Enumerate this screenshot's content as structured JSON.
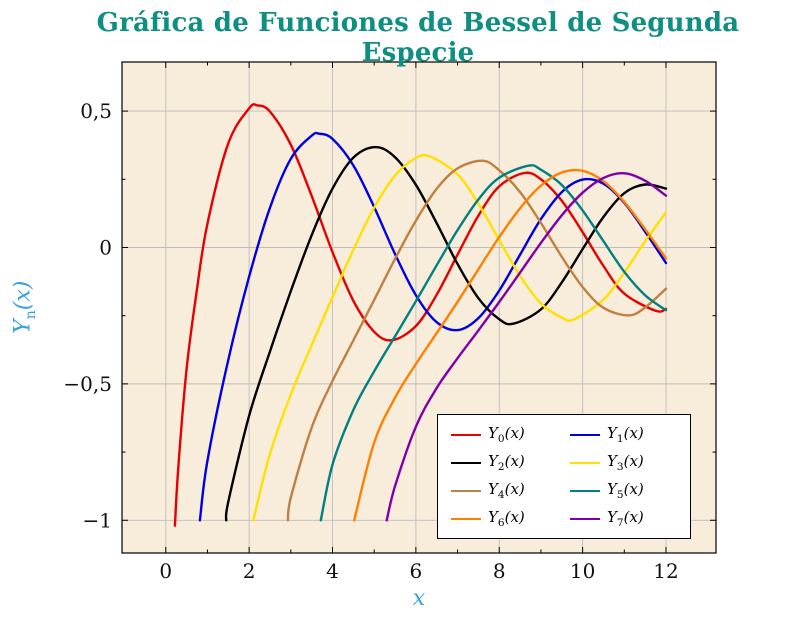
{
  "title": "Gráfica de Funciones de Bessel de Segunda Especie",
  "colors": {
    "title": "#0D8F82",
    "axis_label": "#3AA0DC",
    "grid": "#bdbdbd",
    "plot_background": "#F8ECDB",
    "border": "#000000"
  },
  "chart_data": {
    "type": "line",
    "title": "Gráfica de Funciones de Bessel de Segunda Especie",
    "xlabel": "x",
    "ylabel": {
      "base": "Y",
      "sub": "n",
      "rest": "(x)"
    },
    "xlim": [
      -1.05,
      13.2
    ],
    "ylim": [
      -1.12,
      0.68
    ],
    "grid": true,
    "legend_position": "bottom-right",
    "background": "#F8ECDB",
    "xticks": {
      "values": [
        0,
        2,
        4,
        6,
        8,
        10,
        12
      ],
      "labels": [
        "0",
        "2",
        "4",
        "6",
        "8",
        "10",
        "12"
      ]
    },
    "yticks": {
      "values": [
        0.5,
        0,
        -0.5,
        -1
      ],
      "labels": [
        "0,5",
        "0",
        "−0,5",
        "−1"
      ]
    },
    "minor_xticks": [
      1,
      3,
      5,
      7,
      9,
      11
    ],
    "minor_yticks": [
      0.25,
      -0.25,
      -0.75
    ],
    "series": [
      {
        "name": "Y0",
        "color": "#E60000",
        "label": {
          "base": "Y",
          "sub": "0",
          "rest": "(x)"
        },
        "points": [
          [
            0.22,
            -1.02
          ],
          [
            0.3,
            -0.807
          ],
          [
            0.5,
            -0.445
          ],
          [
            0.75,
            -0.152
          ],
          [
            1,
            0.088
          ],
          [
            1.5,
            0.382
          ],
          [
            2,
            0.51
          ],
          [
            2.2,
            0.521
          ],
          [
            2.5,
            0.498
          ],
          [
            3,
            0.377
          ],
          [
            3.5,
            0.189
          ],
          [
            4,
            -0.017
          ],
          [
            4.5,
            -0.195
          ],
          [
            5,
            -0.309
          ],
          [
            5.43,
            -0.34
          ],
          [
            6,
            -0.288
          ],
          [
            6.5,
            -0.173
          ],
          [
            7,
            -0.026
          ],
          [
            7.5,
            0.117
          ],
          [
            8,
            0.224
          ],
          [
            8.6,
            0.273
          ],
          [
            9,
            0.25
          ],
          [
            9.5,
            0.171
          ],
          [
            10,
            0.056
          ],
          [
            10.5,
            -0.068
          ],
          [
            11,
            -0.169
          ],
          [
            11.75,
            -0.232
          ],
          [
            12,
            -0.225
          ]
        ]
      },
      {
        "name": "Y1",
        "color": "#0000E0",
        "label": {
          "base": "Y",
          "sub": "1",
          "rest": "(x)"
        },
        "points": [
          [
            0.82,
            -1.0
          ],
          [
            1,
            -0.781
          ],
          [
            1.5,
            -0.412
          ],
          [
            2,
            -0.107
          ],
          [
            2.5,
            0.146
          ],
          [
            3,
            0.325
          ],
          [
            3.5,
            0.41
          ],
          [
            3.68,
            0.417
          ],
          [
            4,
            0.398
          ],
          [
            4.5,
            0.301
          ],
          [
            5,
            0.148
          ],
          [
            5.5,
            -0.024
          ],
          [
            6,
            -0.175
          ],
          [
            6.5,
            -0.274
          ],
          [
            7,
            -0.303
          ],
          [
            7.5,
            -0.259
          ],
          [
            8,
            -0.158
          ],
          [
            8.5,
            -0.026
          ],
          [
            9,
            0.104
          ],
          [
            9.5,
            0.203
          ],
          [
            10,
            0.249
          ],
          [
            10.5,
            0.234
          ],
          [
            11,
            0.164
          ],
          [
            11.5,
            0.058
          ],
          [
            12,
            -0.057
          ]
        ]
      },
      {
        "name": "Y2",
        "color": "#000000",
        "label": {
          "base": "Y",
          "sub": "2",
          "rest": "(x)"
        },
        "points": [
          [
            1.45,
            -1.0
          ],
          [
            1.5,
            -0.932
          ],
          [
            2,
            -0.617
          ],
          [
            2.5,
            -0.381
          ],
          [
            3,
            -0.16
          ],
          [
            3.5,
            0.045
          ],
          [
            4,
            0.216
          ],
          [
            4.5,
            0.329
          ],
          [
            5.03,
            0.368
          ],
          [
            5.5,
            0.331
          ],
          [
            6,
            0.23
          ],
          [
            6.5,
            0.089
          ],
          [
            7,
            -0.061
          ],
          [
            7.5,
            -0.186
          ],
          [
            8,
            -0.263
          ],
          [
            8.35,
            -0.279
          ],
          [
            9,
            -0.227
          ],
          [
            9.5,
            -0.128
          ],
          [
            10,
            -0.006
          ],
          [
            10.5,
            0.112
          ],
          [
            11,
            0.199
          ],
          [
            11.5,
            0.231
          ],
          [
            12,
            0.216
          ]
        ]
      },
      {
        "name": "Y3",
        "color": "#FFE100",
        "label": {
          "base": "Y",
          "sub": "3",
          "rest": "(x)"
        },
        "points": [
          [
            2.1,
            -1.0
          ],
          [
            2.5,
            -0.756
          ],
          [
            3,
            -0.539
          ],
          [
            3.5,
            -0.358
          ],
          [
            4,
            -0.182
          ],
          [
            4.5,
            -0.009
          ],
          [
            5,
            0.146
          ],
          [
            5.5,
            0.264
          ],
          [
            6,
            0.328
          ],
          [
            6.35,
            0.333
          ],
          [
            7,
            0.268
          ],
          [
            7.5,
            0.16
          ],
          [
            8,
            0.027
          ],
          [
            8.5,
            -0.104
          ],
          [
            9,
            -0.205
          ],
          [
            9.5,
            -0.257
          ],
          [
            9.8,
            -0.263
          ],
          [
            10.5,
            -0.191
          ],
          [
            11,
            -0.092
          ],
          [
            11.5,
            0.023
          ],
          [
            12,
            0.129
          ]
        ]
      },
      {
        "name": "Y4",
        "color": "#BF8040",
        "label": {
          "base": "Y",
          "sub": "4",
          "rest": "(x)"
        },
        "points": [
          [
            2.93,
            -1.0
          ],
          [
            3,
            -0.917
          ],
          [
            3.5,
            -0.66
          ],
          [
            4,
            -0.489
          ],
          [
            4.5,
            -0.341
          ],
          [
            5,
            -0.192
          ],
          [
            5.5,
            -0.042
          ],
          [
            6,
            0.098
          ],
          [
            6.5,
            0.215
          ],
          [
            7,
            0.29
          ],
          [
            7.6,
            0.318
          ],
          [
            8,
            0.283
          ],
          [
            8.5,
            0.203
          ],
          [
            9,
            0.09
          ],
          [
            9.5,
            -0.034
          ],
          [
            10,
            -0.145
          ],
          [
            10.5,
            -0.221
          ],
          [
            11.1,
            -0.249
          ],
          [
            11.5,
            -0.22
          ],
          [
            12,
            -0.151
          ]
        ]
      },
      {
        "name": "Y5",
        "color": "#008080",
        "label": {
          "base": "Y",
          "sub": "5",
          "rest": "(x)"
        },
        "points": [
          [
            3.72,
            -1.0
          ],
          [
            4,
            -0.796
          ],
          [
            4.5,
            -0.596
          ],
          [
            5,
            -0.454
          ],
          [
            5.5,
            -0.326
          ],
          [
            6,
            -0.197
          ],
          [
            6.5,
            -0.065
          ],
          [
            7,
            0.064
          ],
          [
            7.5,
            0.176
          ],
          [
            8,
            0.256
          ],
          [
            8.7,
            0.3
          ],
          [
            9,
            0.285
          ],
          [
            9.5,
            0.229
          ],
          [
            10,
            0.136
          ],
          [
            10.5,
            0.023
          ],
          [
            11,
            -0.089
          ],
          [
            11.5,
            -0.175
          ],
          [
            12,
            -0.23
          ]
        ]
      },
      {
        "name": "Y6",
        "color": "#FF8000",
        "label": {
          "base": "Y",
          "sub": "6",
          "rest": "(x)"
        },
        "points": [
          [
            4.52,
            -1.0
          ],
          [
            5,
            -0.715
          ],
          [
            5.5,
            -0.551
          ],
          [
            6,
            -0.427
          ],
          [
            6.5,
            -0.314
          ],
          [
            7,
            -0.199
          ],
          [
            7.5,
            -0.08
          ],
          [
            8,
            0.038
          ],
          [
            8.5,
            0.144
          ],
          [
            9,
            0.227
          ],
          [
            9.5,
            0.275
          ],
          [
            10,
            0.281
          ],
          [
            10.5,
            0.243
          ],
          [
            11,
            0.167
          ],
          [
            11.5,
            0.067
          ],
          [
            12,
            -0.04
          ]
        ]
      },
      {
        "name": "Y7",
        "color": "#7F00A8",
        "label": {
          "base": "Y",
          "sub": "7",
          "rest": "(x)"
        },
        "points": [
          [
            5.3,
            -1.0
          ],
          [
            5.5,
            -0.875
          ],
          [
            6,
            -0.657
          ],
          [
            6.5,
            -0.515
          ],
          [
            7,
            -0.406
          ],
          [
            7.5,
            -0.304
          ],
          [
            8,
            -0.2
          ],
          [
            8.5,
            -0.092
          ],
          [
            9,
            0.017
          ],
          [
            9.5,
            0.118
          ],
          [
            10,
            0.201
          ],
          [
            10.5,
            0.255
          ],
          [
            11,
            0.272
          ],
          [
            11.5,
            0.245
          ],
          [
            12,
            0.19
          ]
        ]
      }
    ]
  }
}
